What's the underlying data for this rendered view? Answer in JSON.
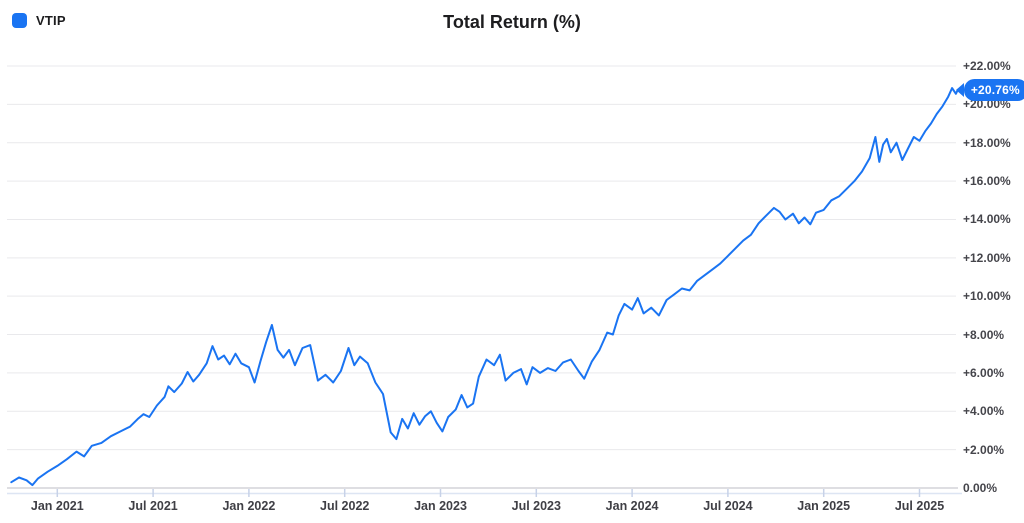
{
  "header": {
    "title": "Total Return (%)",
    "legend": [
      {
        "label": "VTIP",
        "color": "#1a74f2"
      }
    ]
  },
  "badge": {
    "label": "+20.76%",
    "color": "#1a74f2",
    "text_color": "#ffffff",
    "value": 20.76
  },
  "chart_data": {
    "type": "line",
    "title": "Total Return (%)",
    "legend_position": "top-left",
    "grid": "horizontal",
    "line_color": "#1a74f2",
    "grid_color": "#e9e9ec",
    "axis_color": "#d3d3d8",
    "baseline_color": "#dde5f3",
    "xlim": [
      2020.74,
      2025.76
    ],
    "ylim": [
      0,
      22.8
    ],
    "x_ticks": [
      {
        "label": "Jan 2021",
        "t": 2021.0
      },
      {
        "label": "Jul 2021",
        "t": 2021.5
      },
      {
        "label": "Jan 2022",
        "t": 2022.0
      },
      {
        "label": "Jul 2022",
        "t": 2022.5
      },
      {
        "label": "Jan 2023",
        "t": 2023.0
      },
      {
        "label": "Jul 2023",
        "t": 2023.5
      },
      {
        "label": "Jan 2024",
        "t": 2024.0
      },
      {
        "label": "Jul 2024",
        "t": 2024.5
      },
      {
        "label": "Jan 2025",
        "t": 2025.0
      },
      {
        "label": "Jul 2025",
        "t": 2025.5
      }
    ],
    "y_ticks": [
      {
        "label": "+22.00%",
        "value": 22
      },
      {
        "label": "+20.00%",
        "value": 20
      },
      {
        "label": "+18.00%",
        "value": 18
      },
      {
        "label": "+16.00%",
        "value": 16
      },
      {
        "label": "+14.00%",
        "value": 14
      },
      {
        "label": "+12.00%",
        "value": 12
      },
      {
        "label": "+10.00%",
        "value": 10
      },
      {
        "label": "+8.00%",
        "value": 8
      },
      {
        "label": "+6.00%",
        "value": 6
      },
      {
        "label": "+4.00%",
        "value": 4
      },
      {
        "label": "+2.00%",
        "value": 2
      },
      {
        "label": "0.00%",
        "value": 0
      }
    ],
    "series": [
      {
        "name": "VTIP",
        "last_value": 20.76,
        "last_value_label": "+20.76%",
        "points": [
          [
            2020.76,
            0.3
          ],
          [
            2020.8,
            0.55
          ],
          [
            2020.84,
            0.4
          ],
          [
            2020.87,
            0.15
          ],
          [
            2020.9,
            0.5
          ],
          [
            2020.95,
            0.85
          ],
          [
            2021.0,
            1.15
          ],
          [
            2021.05,
            1.5
          ],
          [
            2021.1,
            1.9
          ],
          [
            2021.14,
            1.65
          ],
          [
            2021.18,
            2.2
          ],
          [
            2021.23,
            2.35
          ],
          [
            2021.28,
            2.7
          ],
          [
            2021.33,
            2.95
          ],
          [
            2021.38,
            3.2
          ],
          [
            2021.42,
            3.6
          ],
          [
            2021.45,
            3.85
          ],
          [
            2021.48,
            3.7
          ],
          [
            2021.52,
            4.3
          ],
          [
            2021.56,
            4.75
          ],
          [
            2021.58,
            5.3
          ],
          [
            2021.61,
            5.0
          ],
          [
            2021.65,
            5.45
          ],
          [
            2021.68,
            6.05
          ],
          [
            2021.71,
            5.55
          ],
          [
            2021.74,
            5.9
          ],
          [
            2021.78,
            6.5
          ],
          [
            2021.81,
            7.4
          ],
          [
            2021.84,
            6.7
          ],
          [
            2021.87,
            6.9
          ],
          [
            2021.9,
            6.45
          ],
          [
            2021.93,
            7.0
          ],
          [
            2021.96,
            6.5
          ],
          [
            2022.0,
            6.3
          ],
          [
            2022.03,
            5.5
          ],
          [
            2022.06,
            6.6
          ],
          [
            2022.09,
            7.6
          ],
          [
            2022.12,
            8.5
          ],
          [
            2022.15,
            7.2
          ],
          [
            2022.18,
            6.8
          ],
          [
            2022.21,
            7.2
          ],
          [
            2022.24,
            6.4
          ],
          [
            2022.28,
            7.3
          ],
          [
            2022.32,
            7.45
          ],
          [
            2022.36,
            5.6
          ],
          [
            2022.4,
            5.9
          ],
          [
            2022.44,
            5.5
          ],
          [
            2022.48,
            6.1
          ],
          [
            2022.52,
            7.3
          ],
          [
            2022.55,
            6.4
          ],
          [
            2022.58,
            6.85
          ],
          [
            2022.62,
            6.5
          ],
          [
            2022.66,
            5.5
          ],
          [
            2022.7,
            4.9
          ],
          [
            2022.74,
            2.9
          ],
          [
            2022.77,
            2.55
          ],
          [
            2022.8,
            3.6
          ],
          [
            2022.83,
            3.1
          ],
          [
            2022.86,
            3.9
          ],
          [
            2022.89,
            3.3
          ],
          [
            2022.92,
            3.75
          ],
          [
            2022.95,
            4.0
          ],
          [
            2022.98,
            3.4
          ],
          [
            2023.01,
            2.95
          ],
          [
            2023.04,
            3.7
          ],
          [
            2023.08,
            4.1
          ],
          [
            2023.11,
            4.85
          ],
          [
            2023.14,
            4.2
          ],
          [
            2023.17,
            4.4
          ],
          [
            2023.2,
            5.8
          ],
          [
            2023.24,
            6.7
          ],
          [
            2023.28,
            6.4
          ],
          [
            2023.31,
            6.95
          ],
          [
            2023.34,
            5.6
          ],
          [
            2023.38,
            6.0
          ],
          [
            2023.42,
            6.2
          ],
          [
            2023.45,
            5.4
          ],
          [
            2023.48,
            6.3
          ],
          [
            2023.52,
            6.0
          ],
          [
            2023.56,
            6.25
          ],
          [
            2023.6,
            6.1
          ],
          [
            2023.64,
            6.55
          ],
          [
            2023.68,
            6.7
          ],
          [
            2023.72,
            6.1
          ],
          [
            2023.75,
            5.7
          ],
          [
            2023.79,
            6.6
          ],
          [
            2023.83,
            7.2
          ],
          [
            2023.87,
            8.1
          ],
          [
            2023.9,
            8.0
          ],
          [
            2023.93,
            9.0
          ],
          [
            2023.96,
            9.6
          ],
          [
            2024.0,
            9.3
          ],
          [
            2024.03,
            9.9
          ],
          [
            2024.06,
            9.1
          ],
          [
            2024.1,
            9.4
          ],
          [
            2024.14,
            9.0
          ],
          [
            2024.18,
            9.8
          ],
          [
            2024.22,
            10.1
          ],
          [
            2024.26,
            10.4
          ],
          [
            2024.3,
            10.3
          ],
          [
            2024.34,
            10.8
          ],
          [
            2024.38,
            11.1
          ],
          [
            2024.42,
            11.4
          ],
          [
            2024.46,
            11.7
          ],
          [
            2024.5,
            12.1
          ],
          [
            2024.54,
            12.5
          ],
          [
            2024.58,
            12.9
          ],
          [
            2024.62,
            13.2
          ],
          [
            2024.66,
            13.8
          ],
          [
            2024.7,
            14.2
          ],
          [
            2024.74,
            14.6
          ],
          [
            2024.77,
            14.4
          ],
          [
            2024.8,
            14.0
          ],
          [
            2024.84,
            14.3
          ],
          [
            2024.87,
            13.8
          ],
          [
            2024.9,
            14.1
          ],
          [
            2024.93,
            13.75
          ],
          [
            2024.96,
            14.35
          ],
          [
            2025.0,
            14.5
          ],
          [
            2025.04,
            15.0
          ],
          [
            2025.08,
            15.2
          ],
          [
            2025.12,
            15.6
          ],
          [
            2025.16,
            16.0
          ],
          [
            2025.2,
            16.5
          ],
          [
            2025.24,
            17.2
          ],
          [
            2025.27,
            18.3
          ],
          [
            2025.29,
            17.0
          ],
          [
            2025.31,
            17.9
          ],
          [
            2025.33,
            18.2
          ],
          [
            2025.35,
            17.5
          ],
          [
            2025.38,
            18.0
          ],
          [
            2025.41,
            17.1
          ],
          [
            2025.44,
            17.7
          ],
          [
            2025.47,
            18.3
          ],
          [
            2025.5,
            18.1
          ],
          [
            2025.53,
            18.6
          ],
          [
            2025.56,
            19.0
          ],
          [
            2025.59,
            19.5
          ],
          [
            2025.62,
            19.9
          ],
          [
            2025.65,
            20.4
          ],
          [
            2025.67,
            20.85
          ],
          [
            2025.69,
            20.55
          ],
          [
            2025.7,
            20.76
          ]
        ]
      }
    ]
  }
}
